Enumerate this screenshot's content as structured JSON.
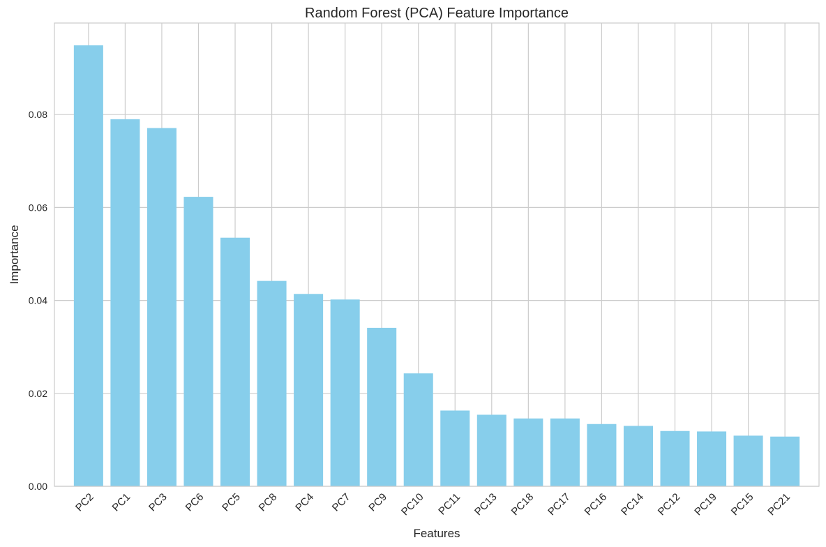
{
  "chart_data": {
    "type": "bar",
    "title": "Random Forest (PCA) Feature Importance",
    "xlabel": "Features",
    "ylabel": "Importance",
    "categories": [
      "PC2",
      "PC1",
      "PC3",
      "PC6",
      "PC5",
      "PC8",
      "PC4",
      "PC7",
      "PC9",
      "PC10",
      "PC11",
      "PC13",
      "PC18",
      "PC17",
      "PC16",
      "PC14",
      "PC12",
      "PC19",
      "PC15",
      "PC21"
    ],
    "values": [
      0.0949,
      0.079,
      0.0771,
      0.0623,
      0.0535,
      0.0442,
      0.0414,
      0.0402,
      0.0341,
      0.0243,
      0.0163,
      0.0154,
      0.0146,
      0.0146,
      0.0134,
      0.013,
      0.0119,
      0.0118,
      0.0109,
      0.0107
    ],
    "ylim": [
      0,
      0.0997
    ],
    "yticks": [
      "0.00",
      "0.02",
      "0.04",
      "0.06",
      "0.08"
    ],
    "ytick_values": [
      0,
      0.02,
      0.04,
      0.06,
      0.08
    ],
    "grid": true,
    "bar_color": "#87ceeb",
    "grid_color": "#cccccc"
  }
}
